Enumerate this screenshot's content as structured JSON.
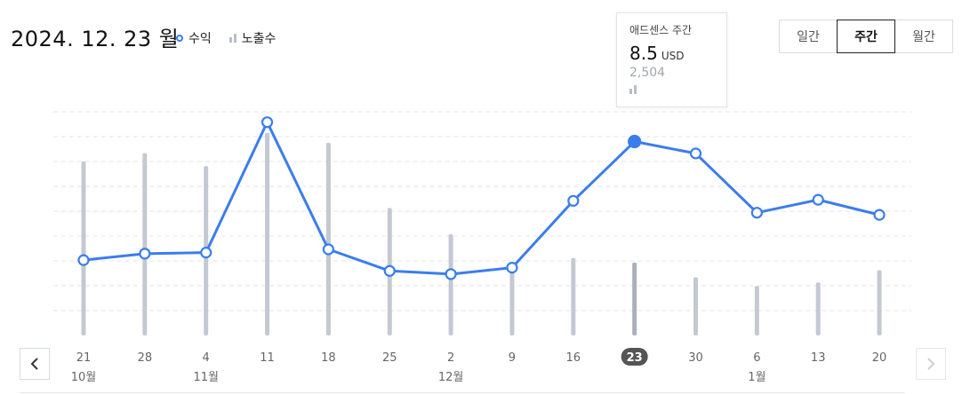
{
  "header": {
    "date_label": "2024. 12. 23 월"
  },
  "legend": {
    "revenue_label": "수익",
    "impressions_label": "노출수"
  },
  "period_tabs": [
    {
      "label": "일간",
      "active": false
    },
    {
      "label": "주간",
      "active": true
    },
    {
      "label": "월간",
      "active": false
    }
  ],
  "tooltip": {
    "title": "애드센스 주간",
    "value": "8.5",
    "unit": "USD",
    "impressions": "2,504"
  },
  "nav": {
    "prev_icon": "chevron-left-icon",
    "next_icon": "chevron-right-icon",
    "next_disabled": true
  },
  "colors": {
    "line": "#3b7ded",
    "bar": "#c4c9d1",
    "bar_selected": "#a9b0bb",
    "grid": "#e2e4e8",
    "selected_badge": "#555555"
  },
  "chart_data": {
    "type": "line",
    "categories": [
      "21",
      "28",
      "4",
      "11",
      "18",
      "25",
      "2",
      "9",
      "16",
      "23",
      "30",
      "6",
      "13",
      "20"
    ],
    "month_labels": [
      "10월",
      "",
      "11월",
      "",
      "",
      "",
      "12월",
      "",
      "",
      "",
      "",
      "1월",
      "",
      ""
    ],
    "selected_index": 9,
    "series": [
      {
        "name": "수익",
        "kind": "line",
        "unit": "USD",
        "values": [
          3.0,
          3.3,
          3.35,
          9.4,
          3.5,
          2.5,
          2.35,
          2.65,
          5.75,
          8.5,
          7.95,
          5.2,
          5.8,
          5.1
        ]
      },
      {
        "name": "노출수",
        "kind": "bar",
        "values": [
          5980,
          6260,
          5820,
          6960,
          6620,
          4380,
          3480,
          2270,
          2660,
          2504,
          2000,
          1700,
          1820,
          2240
        ]
      }
    ],
    "grid": true
  }
}
